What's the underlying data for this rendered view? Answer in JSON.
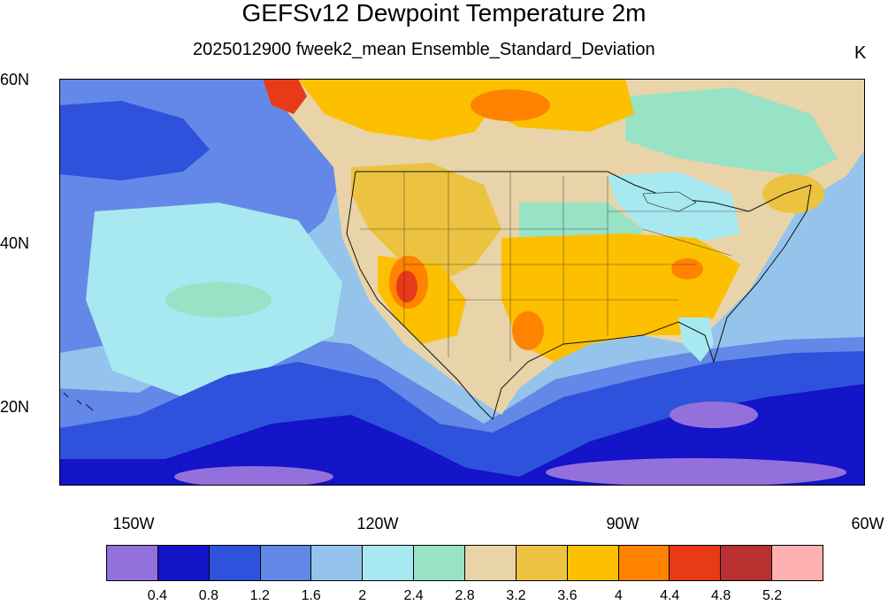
{
  "map": {
    "title": "GEFSv12 Dewpoint Temperature 2m",
    "subtitle": "2025012900 fweek2_mean Ensemble_Standard_Deviation",
    "units": "K",
    "lat_labels": [
      "60N",
      "40N",
      "20N"
    ],
    "lon_labels": [
      "150W",
      "120W",
      "90W",
      "60W"
    ],
    "extent": {
      "lon": [
        -159,
        -60
      ],
      "lat": [
        10,
        60
      ]
    }
  },
  "colorbar": {
    "colors": [
      "#9370db",
      "#1414c8",
      "#2e52dc",
      "#6488e8",
      "#94c4ec",
      "#a8e8f0",
      "#98e2c6",
      "#e8d4a8",
      "#ecc340",
      "#fcc000",
      "#ff8200",
      "#e93a18",
      "#b83030",
      "#ffb0b0"
    ],
    "ticks": [
      "0.4",
      "0.8",
      "1.2",
      "1.6",
      "2",
      "2.4",
      "2.8",
      "3.2",
      "3.6",
      "4",
      "4.4",
      "4.8",
      "5.2"
    ]
  }
}
